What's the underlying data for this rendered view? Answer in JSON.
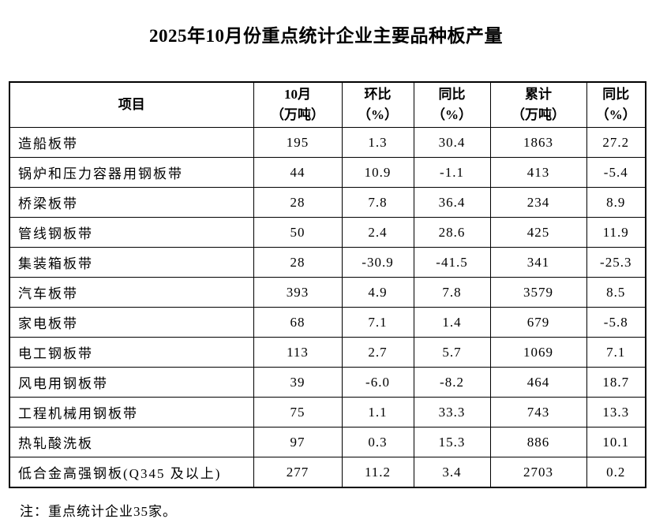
{
  "title": "2025年10月份重点统计企业主要品种板产量",
  "table": {
    "columns": [
      {
        "line1": "项目",
        "line2": ""
      },
      {
        "line1": "10月",
        "line2": "（万吨）"
      },
      {
        "line1": "环比",
        "line2": "（%）"
      },
      {
        "line1": "同比",
        "line2": "（%）"
      },
      {
        "line1": "累计",
        "line2": "（万吨）"
      },
      {
        "line1": "同比",
        "line2": "（%）"
      }
    ],
    "rows": [
      {
        "item": "造船板带",
        "oct": "195",
        "mom": "1.3",
        "yoy": "30.4",
        "cum": "1863",
        "cum_yoy": "27.2"
      },
      {
        "item": "锅炉和压力容器用钢板带",
        "oct": "44",
        "mom": "10.9",
        "yoy": "-1.1",
        "cum": "413",
        "cum_yoy": "-5.4"
      },
      {
        "item": "桥梁板带",
        "oct": "28",
        "mom": "7.8",
        "yoy": "36.4",
        "cum": "234",
        "cum_yoy": "8.9"
      },
      {
        "item": "管线钢板带",
        "oct": "50",
        "mom": "2.4",
        "yoy": "28.6",
        "cum": "425",
        "cum_yoy": "11.9"
      },
      {
        "item": "集装箱板带",
        "oct": "28",
        "mom": "-30.9",
        "yoy": "-41.5",
        "cum": "341",
        "cum_yoy": "-25.3"
      },
      {
        "item": "汽车板带",
        "oct": "393",
        "mom": "4.9",
        "yoy": "7.8",
        "cum": "3579",
        "cum_yoy": "8.5"
      },
      {
        "item": "家电板带",
        "oct": "68",
        "mom": "7.1",
        "yoy": "1.4",
        "cum": "679",
        "cum_yoy": "-5.8"
      },
      {
        "item": "电工钢板带",
        "oct": "113",
        "mom": "2.7",
        "yoy": "5.7",
        "cum": "1069",
        "cum_yoy": "7.1"
      },
      {
        "item": "风电用钢板带",
        "oct": "39",
        "mom": "-6.0",
        "yoy": "-8.2",
        "cum": "464",
        "cum_yoy": "18.7"
      },
      {
        "item": "工程机械用钢板带",
        "oct": "75",
        "mom": "1.1",
        "yoy": "33.3",
        "cum": "743",
        "cum_yoy": "13.3"
      },
      {
        "item": "热轧酸洗板",
        "oct": "97",
        "mom": "0.3",
        "yoy": "15.3",
        "cum": "886",
        "cum_yoy": "10.1"
      },
      {
        "item": "低合金高强钢板(Q345 及以上)",
        "oct": "277",
        "mom": "11.2",
        "yoy": "3.4",
        "cum": "2703",
        "cum_yoy": "0.2"
      }
    ]
  },
  "note": "注：重点统计企业35家。",
  "colors": {
    "text": "#000000",
    "border": "#000000",
    "background": "#ffffff"
  }
}
